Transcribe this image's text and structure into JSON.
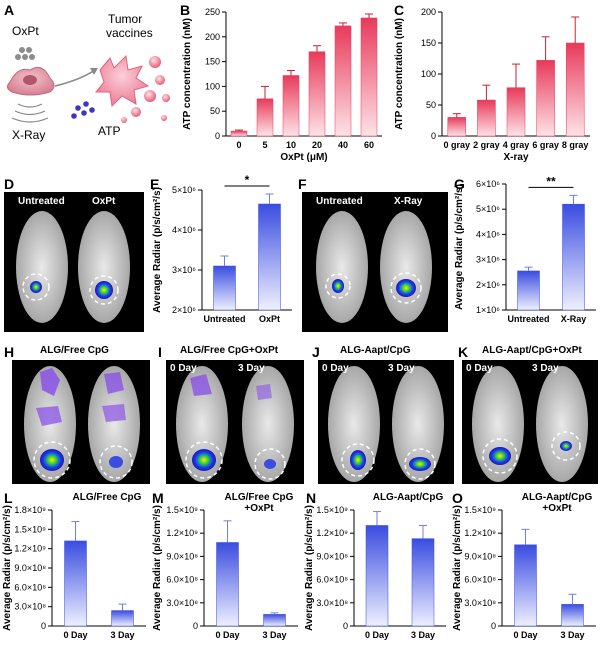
{
  "panels": {
    "A": {
      "letter": "A",
      "labels": {
        "oxpt": "OxPt",
        "tumor_vaccines_line1": "Tumor",
        "tumor_vaccines_line2": "vaccines",
        "xray": "X-Ray",
        "atp": "ATP"
      }
    },
    "B": {
      "letter": "B"
    },
    "C": {
      "letter": "C"
    },
    "D": {
      "letter": "D",
      "left_label": "Untreated",
      "right_label": "OxPt"
    },
    "E": {
      "letter": "E"
    },
    "F": {
      "letter": "F",
      "left_label": "Untreated",
      "right_label": "X-Ray"
    },
    "G": {
      "letter": "G"
    },
    "H": {
      "letter": "H",
      "title": "ALG/Free CpG"
    },
    "I": {
      "letter": "I",
      "title": "ALG/Free CpG+OxPt",
      "left_label": "0 Day",
      "right_label": "3 Day"
    },
    "J": {
      "letter": "J",
      "title": "ALG-Aapt/CpG",
      "left_label": "0 Day",
      "right_label": "3 Day"
    },
    "K": {
      "letter": "K",
      "title": "ALG-Aapt/CpG+OxPt",
      "left_label": "0 Day",
      "right_label": "3 Day"
    },
    "L": {
      "letter": "L"
    },
    "M": {
      "letter": "M"
    },
    "N": {
      "letter": "N"
    },
    "O": {
      "letter": "O"
    }
  },
  "colors": {
    "red_dark": "#e83a5a",
    "red_light": "#fde3e8",
    "blue_dark": "#3a4de0",
    "blue_light": "#eef0ff",
    "error_red": "#cc1f2f",
    "error_blue": "#6f7fe0"
  },
  "chart_data": [
    {
      "id": "B",
      "type": "bar",
      "categories": [
        "0",
        "5",
        "10",
        "20",
        "40",
        "60"
      ],
      "values": [
        10,
        75,
        122,
        170,
        222,
        238
      ],
      "errors": [
        2,
        25,
        10,
        12,
        6,
        8
      ],
      "ylabel": "ATP concentration (nM)",
      "xlabel": "OxPt (μM)",
      "ylim": [
        0,
        250
      ],
      "yticks": [
        "0",
        "50",
        "100",
        "150",
        "200",
        "250"
      ],
      "ytick_values": [
        0,
        50,
        100,
        150,
        200,
        250
      ],
      "color": "red"
    },
    {
      "id": "C",
      "type": "bar",
      "categories": [
        "0 gray",
        "2 gray",
        "4 gray",
        "6 gray",
        "8 gray"
      ],
      "values": [
        30,
        58,
        78,
        122,
        150
      ],
      "errors": [
        6,
        24,
        38,
        38,
        42
      ],
      "ylabel": "ATP concentration (nM)",
      "xlabel": "X-ray",
      "ylim": [
        0,
        200
      ],
      "yticks": [
        "0",
        "50",
        "100",
        "150",
        "200"
      ],
      "ytick_values": [
        0,
        50,
        100,
        150,
        200
      ],
      "color": "red"
    },
    {
      "id": "E",
      "type": "bar",
      "categories": [
        "Untreated",
        "OxPt"
      ],
      "values": [
        3100000,
        4650000
      ],
      "errors": [
        250000,
        250000
      ],
      "ylabel": "Average Radiar (p/s/cm²/s)",
      "ylim": [
        2000000,
        5000000
      ],
      "yticks": [
        "2×10⁶",
        "3×10⁶",
        "4×10⁶",
        "5×10⁶"
      ],
      "ytick_values": [
        2000000,
        3000000,
        4000000,
        5000000
      ],
      "significance": "*",
      "color": "blue"
    },
    {
      "id": "G",
      "type": "bar",
      "categories": [
        "Untreated",
        "X-Ray"
      ],
      "values": [
        2550000,
        5200000
      ],
      "errors": [
        150000,
        350000
      ],
      "ylabel": "Average Radiar (p/s/cm²/s)",
      "ylim": [
        1000000,
        6000000
      ],
      "yticks": [
        "1×10⁶",
        "2×10⁶",
        "3×10⁶",
        "4×10⁶",
        "5×10⁶",
        "6×10⁶"
      ],
      "ytick_values": [
        1000000,
        2000000,
        3000000,
        4000000,
        5000000,
        6000000
      ],
      "significance": "**",
      "color": "blue"
    },
    {
      "id": "L",
      "type": "bar",
      "title": "ALG/Free CpG",
      "categories": [
        "0 Day",
        "3 Day"
      ],
      "values": [
        1320000000,
        240000000
      ],
      "errors": [
        300000000,
        100000000
      ],
      "ylabel": "Average Radiar (p/s/cm²/s)",
      "ylim": [
        0,
        1800000000
      ],
      "yticks": [
        "0",
        "3.0×10⁸",
        "6.0×10⁸",
        "9.0×10⁸",
        "1.2×10⁹",
        "1.5×10⁹",
        "1.8×10⁹"
      ],
      "ytick_values": [
        0,
        300000000,
        600000000,
        900000000,
        1200000000,
        1500000000,
        1800000000
      ],
      "color": "blue"
    },
    {
      "id": "M",
      "type": "bar",
      "title": "ALG/Free CpG\n+OxPt",
      "categories": [
        "0 Day",
        "3 Day"
      ],
      "values": [
        1080000000,
        150000000
      ],
      "errors": [
        280000000,
        20000000
      ],
      "ylabel": "Average Radiar (p/s/cm²/s)",
      "ylim": [
        0,
        1500000000
      ],
      "yticks": [
        "0",
        "3.0×10⁸",
        "6.0×10⁸",
        "9.0×10⁸",
        "1.2×10⁹",
        "1.5×10⁹"
      ],
      "ytick_values": [
        0,
        300000000,
        600000000,
        900000000,
        1200000000,
        1500000000
      ],
      "color": "blue"
    },
    {
      "id": "N",
      "type": "bar",
      "title": "ALG-Aapt/CpG",
      "categories": [
        "0 Day",
        "3 Day"
      ],
      "values": [
        1300000000,
        1130000000
      ],
      "errors": [
        180000000,
        170000000
      ],
      "ylabel": "Average Radiar (p/s/cm²/s)",
      "ylim": [
        0,
        1500000000
      ],
      "yticks": [
        "0",
        "3.0×10⁸",
        "6.0×10⁸",
        "9.0×10⁸",
        "1.2×10⁹",
        "1.5×10⁹"
      ],
      "ytick_values": [
        0,
        300000000,
        600000000,
        900000000,
        1200000000,
        1500000000
      ],
      "color": "blue"
    },
    {
      "id": "O",
      "type": "bar",
      "title": "ALG-Aapt/CpG\n+OxPt",
      "categories": [
        "0 Day",
        "3 Day"
      ],
      "values": [
        1050000000,
        280000000
      ],
      "errors": [
        200000000,
        130000000
      ],
      "ylabel": "Average Radiar (p/s/cm²/s)",
      "ylim": [
        0,
        1500000000
      ],
      "yticks": [
        "0",
        "3.0×10⁸",
        "6.0×10⁸",
        "9.0×10⁸",
        "1.2×10⁹",
        "1.5×10⁹"
      ],
      "ytick_values": [
        0,
        300000000,
        600000000,
        900000000,
        1200000000,
        1500000000
      ],
      "color": "blue"
    }
  ]
}
